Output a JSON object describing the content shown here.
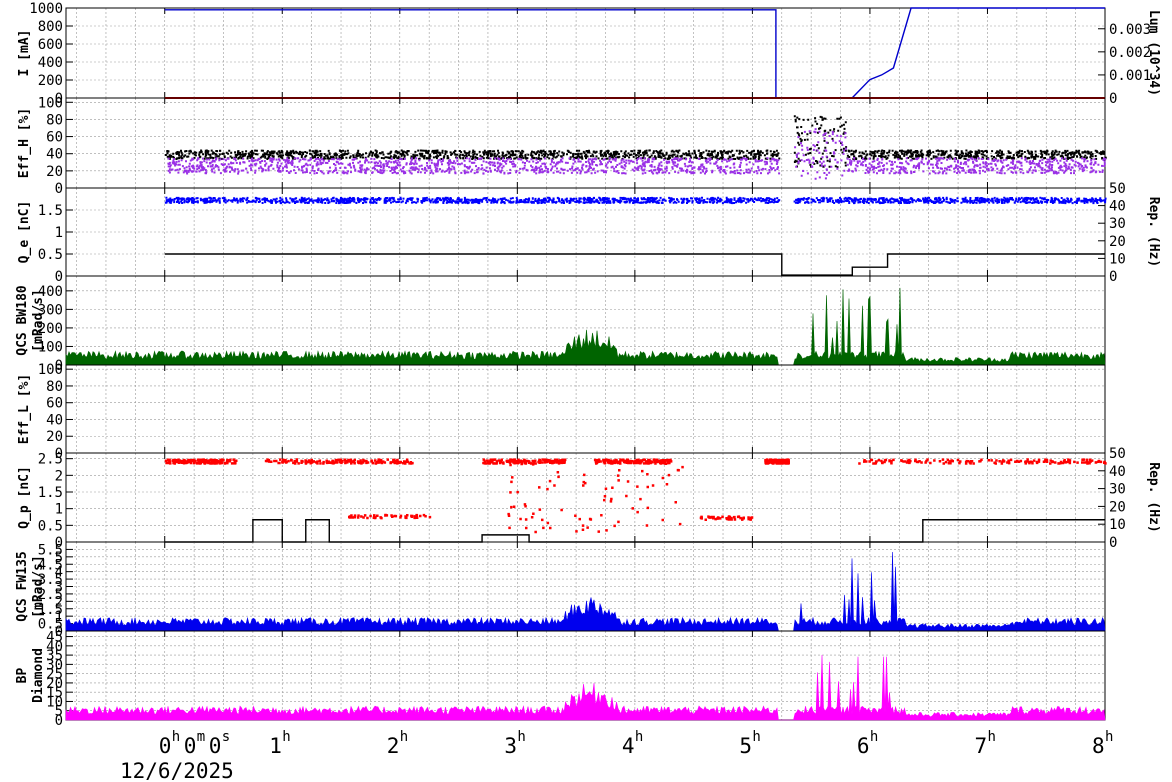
{
  "chart_data": [
    {
      "type": "line",
      "panel": "I",
      "ylabel": "I [mA]",
      "ylim": [
        0,
        1000
      ],
      "y_ticks": [
        "0",
        "200",
        "400",
        "600",
        "800",
        "1000"
      ],
      "right_axis": {
        "label": "Lum (10^34)",
        "ylim": [
          0,
          0.0039
        ],
        "ticks": [
          "0",
          "0.001",
          "0.002",
          "0.003"
        ]
      },
      "series": [
        {
          "color": "#0000cc",
          "x": [
            0,
            5.2,
            5.2,
            5.85,
            6.0,
            6.15,
            6.35,
            8
          ],
          "values": [
            980,
            980,
            0,
            0,
            0,
            0,
            0,
            0
          ]
        },
        {
          "color": "#0000cc",
          "axis": "right",
          "x": [
            5.7,
            5.85,
            6.0,
            6.1,
            6.2,
            6.35,
            8
          ],
          "values": [
            0,
            1e-05,
            0.0008,
            0.001,
            0.0013,
            0.0039,
            0.0039
          ]
        },
        {
          "color": "#cc0000",
          "x": [
            0,
            8
          ],
          "values": [
            0,
            0
          ]
        }
      ]
    },
    {
      "type": "scatter",
      "panel": "EffH",
      "ylabel": "Eff_H [%]",
      "ylim": [
        0,
        105
      ],
      "y_ticks": [
        "0",
        "20",
        "40",
        "60",
        "80",
        "100"
      ],
      "series": [
        {
          "color": "#000000",
          "typical": 40,
          "spread": 5
        },
        {
          "color": "#9a30e6",
          "typical": 27,
          "spread": 9
        }
      ]
    },
    {
      "type": "scatter",
      "panel": "Qe",
      "ylabel": "Q_e [nC]",
      "ylim": [
        0,
        2
      ],
      "y_ticks": [
        "0",
        "0.5",
        "1",
        "1.5"
      ],
      "right_axis": {
        "label": "Rep. (Hz)",
        "ylim": [
          0,
          50
        ],
        "ticks": [
          "0",
          "10",
          "20",
          "30",
          "40",
          "50"
        ]
      },
      "series": [
        {
          "color": "#0000ff",
          "typical": 1.74
        },
        {
          "color": "#000000",
          "axis": "right",
          "x": [
            0,
            5.25,
            5.25,
            5.85,
            5.85,
            6.15,
            6.15,
            8
          ],
          "values": [
            12.5,
            12.5,
            0.5,
            0.5,
            5,
            5,
            12.5,
            12.5
          ]
        }
      ]
    },
    {
      "type": "area",
      "panel": "QCS BW180",
      "ylabel": "QCS BW180 [mRad/s]",
      "ylim": [
        0,
        480
      ],
      "y_ticks": [
        "0",
        "100",
        "200",
        "300",
        "400"
      ],
      "series": [
        {
          "color": "#006400",
          "typical": 50
        }
      ]
    },
    {
      "type": "scatter",
      "panel": "EffL",
      "ylabel": "Eff_L [%]",
      "ylim": [
        0,
        105
      ],
      "y_ticks": [
        "0",
        "20",
        "40",
        "60",
        "80",
        "100"
      ],
      "series": []
    },
    {
      "type": "scatter",
      "panel": "Qp",
      "ylabel": "Q_p [nC]",
      "ylim": [
        0,
        2.67
      ],
      "y_ticks": [
        "0",
        "0.5",
        "1",
        "1.5",
        "2",
        "2.5"
      ],
      "right_axis": {
        "label": "Rep. (Hz)",
        "ylim": [
          0,
          50
        ],
        "ticks": [
          "0",
          "10",
          "20",
          "30",
          "40",
          "50"
        ]
      },
      "series": [
        {
          "color": "#ff0000",
          "typical": 2.45
        },
        {
          "color": "#000000",
          "axis": "right",
          "x": [
            0,
            0.75,
            0.75,
            1.0,
            1.0,
            1.2,
            1.2,
            1.4,
            1.4,
            2.7,
            2.7,
            3.1,
            3.1,
            6.45,
            6.45,
            8
          ],
          "values": [
            0,
            0,
            12.5,
            12.5,
            0,
            0,
            12.5,
            12.5,
            0,
            0,
            4,
            4,
            0,
            0,
            12.5,
            12.5
          ]
        }
      ]
    },
    {
      "type": "area",
      "panel": "QCS FW135",
      "ylabel": "QCS FW135 [mRad/s]",
      "ylim": [
        0,
        6
      ],
      "y_ticks": [
        "0",
        "0.5",
        "1",
        "1.5",
        "2",
        "2.5",
        "3",
        "3.5",
        "4",
        "4.5",
        "5",
        "5.5"
      ],
      "series": [
        {
          "color": "#0000ee",
          "typical": 0.6
        }
      ]
    },
    {
      "type": "area",
      "panel": "BP Diamond",
      "ylabel": "BP Diamond",
      "ylim": [
        0,
        48
      ],
      "y_ticks": [
        "0",
        "5",
        "10",
        "15",
        "20",
        "25",
        "30",
        "35",
        "40",
        "45"
      ],
      "series": [
        {
          "color": "#ff00ff",
          "typical": 5
        }
      ]
    }
  ],
  "x_axis": {
    "range_hours": [
      -0.84,
      8
    ],
    "ticks": [
      {
        "hour": 0,
        "label": "0",
        "sup": "h",
        "label2": "0",
        "sup2": "m",
        "label3": "0",
        "sup3": "s"
      },
      {
        "hour": 1,
        "label": "1",
        "sup": "h"
      },
      {
        "hour": 2,
        "label": "2",
        "sup": "h"
      },
      {
        "hour": 3,
        "label": "3",
        "sup": "h"
      },
      {
        "hour": 4,
        "label": "4",
        "sup": "h"
      },
      {
        "hour": 5,
        "label": "5",
        "sup": "h"
      },
      {
        "hour": 6,
        "label": "6",
        "sup": "h"
      },
      {
        "hour": 7,
        "label": "7",
        "sup": "h"
      },
      {
        "hour": 8,
        "label": "8",
        "sup": "h"
      }
    ],
    "date_label": "12/6/2025"
  }
}
